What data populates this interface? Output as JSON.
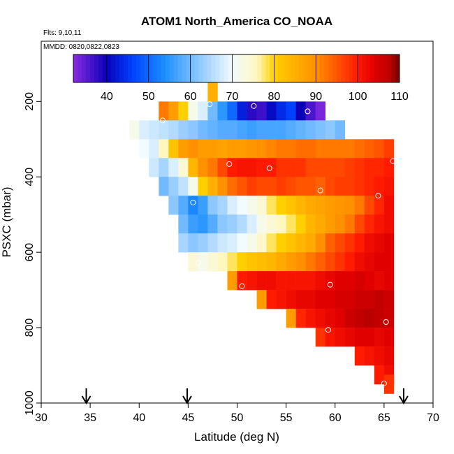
{
  "chart_data": {
    "type": "heatmap",
    "title": "ATOM1 North_America CO_NOAA",
    "flights_text": "Flts: 9,10,11",
    "dates_text": "MMDD: 0820,0822,0823",
    "xlabel": "Latitude (deg N)",
    "ylabel": "PSXC (mbar)",
    "xlim": [
      30,
      70
    ],
    "ylim": [
      1000,
      40
    ],
    "x_ticks": [
      30,
      35,
      40,
      45,
      50,
      55,
      60,
      65,
      70
    ],
    "y_ticks": [
      200,
      400,
      600,
      800,
      1000
    ],
    "colorbar": {
      "min": 32,
      "max": 110,
      "ticks": [
        40,
        50,
        60,
        70,
        80,
        90,
        100,
        110
      ],
      "stops": [
        [
          32,
          "#8a2be2"
        ],
        [
          40,
          "#0a00b8"
        ],
        [
          46,
          "#0040ff"
        ],
        [
          54,
          "#1e90ff"
        ],
        [
          62,
          "#8cc8ff"
        ],
        [
          70,
          "#f2fbff"
        ],
        [
          76,
          "#fff7c0"
        ],
        [
          80,
          "#ffd000"
        ],
        [
          90,
          "#ff9000"
        ],
        [
          100,
          "#ff1a00"
        ],
        [
          104,
          "#e00000"
        ],
        [
          108,
          "#b80000"
        ],
        [
          110,
          "#6a0000"
        ]
      ]
    },
    "bin_width_lat": 1,
    "bin_height_mbar": 50,
    "cells": [
      {
        "p": 175,
        "row": [
          [
            47.5,
            85
          ]
        ]
      },
      {
        "p": 225,
        "row": [
          [
            42.5,
            92
          ],
          [
            43.5,
            88
          ],
          [
            44.5,
            80
          ],
          [
            45.5,
            72
          ],
          [
            46.5,
            68
          ],
          [
            47.5,
            60
          ],
          [
            48.5,
            55
          ],
          [
            49.5,
            50
          ],
          [
            50.5,
            43
          ],
          [
            51.5,
            38
          ],
          [
            52.5,
            37
          ],
          [
            53.5,
            41
          ],
          [
            54.5,
            44
          ],
          [
            55.5,
            46
          ],
          [
            56.5,
            40
          ],
          [
            57.5,
            36
          ],
          [
            58.5,
            33
          ]
        ]
      },
      {
        "p": 275,
        "row": [
          [
            39.5,
            72
          ],
          [
            40.5,
            68
          ],
          [
            41.5,
            67
          ],
          [
            42.5,
            66
          ],
          [
            43.5,
            65
          ],
          [
            44.5,
            63
          ],
          [
            45.5,
            62
          ],
          [
            46.5,
            60
          ],
          [
            47.5,
            59
          ],
          [
            48.5,
            58
          ],
          [
            49.5,
            58
          ],
          [
            50.5,
            57
          ],
          [
            51.5,
            56
          ],
          [
            52.5,
            57
          ],
          [
            53.5,
            57
          ],
          [
            54.5,
            57
          ],
          [
            55.5,
            58
          ],
          [
            56.5,
            59
          ],
          [
            57.5,
            60
          ],
          [
            58.5,
            61
          ],
          [
            59.5,
            62
          ],
          [
            60.5,
            60
          ]
        ]
      },
      {
        "p": 325,
        "row": [
          [
            40.5,
            70
          ],
          [
            41.5,
            68
          ],
          [
            42.5,
            76
          ],
          [
            43.5,
            82
          ],
          [
            44.5,
            88
          ],
          [
            45.5,
            90
          ],
          [
            46.5,
            88
          ],
          [
            47.5,
            88
          ],
          [
            48.5,
            87
          ],
          [
            49.5,
            88
          ],
          [
            50.5,
            88
          ],
          [
            51.5,
            89
          ],
          [
            52.5,
            90
          ],
          [
            53.5,
            91
          ],
          [
            54.5,
            92
          ],
          [
            55.5,
            92
          ],
          [
            56.5,
            93
          ],
          [
            57.5,
            93
          ],
          [
            58.5,
            92
          ],
          [
            59.5,
            92
          ],
          [
            60.5,
            92
          ],
          [
            61.5,
            92
          ],
          [
            62.5,
            93
          ],
          [
            63.5,
            94
          ],
          [
            64.5,
            95
          ],
          [
            65.5,
            97
          ]
        ]
      },
      {
        "p": 375,
        "row": [
          [
            41.5,
            67
          ],
          [
            42.5,
            64
          ],
          [
            43.5,
            68
          ],
          [
            44.5,
            74
          ],
          [
            45.5,
            84
          ],
          [
            46.5,
            90
          ],
          [
            47.5,
            92
          ],
          [
            48.5,
            96
          ],
          [
            49.5,
            100
          ],
          [
            50.5,
            101
          ],
          [
            51.5,
            101
          ],
          [
            52.5,
            100
          ],
          [
            53.5,
            100
          ],
          [
            54.5,
            98
          ],
          [
            55.5,
            98
          ],
          [
            56.5,
            98
          ],
          [
            57.5,
            96
          ],
          [
            58.5,
            96
          ],
          [
            59.5,
            96
          ],
          [
            60.5,
            96
          ],
          [
            61.5,
            97
          ],
          [
            62.5,
            98
          ],
          [
            63.5,
            99
          ],
          [
            64.5,
            99
          ],
          [
            65.5,
            100
          ]
        ]
      },
      {
        "p": 425,
        "row": [
          [
            42.5,
            60
          ],
          [
            43.5,
            63
          ],
          [
            44.5,
            66
          ],
          [
            45.5,
            72
          ],
          [
            46.5,
            80
          ],
          [
            47.5,
            85
          ],
          [
            48.5,
            90
          ],
          [
            49.5,
            93
          ],
          [
            50.5,
            95
          ],
          [
            51.5,
            97
          ],
          [
            52.5,
            96
          ],
          [
            53.5,
            96
          ],
          [
            54.5,
            97
          ],
          [
            55.5,
            96
          ],
          [
            56.5,
            95
          ],
          [
            57.5,
            95
          ],
          [
            58.5,
            94
          ],
          [
            59.5,
            96
          ],
          [
            60.5,
            97
          ],
          [
            61.5,
            97
          ],
          [
            62.5,
            98
          ],
          [
            63.5,
            99
          ],
          [
            64.5,
            100
          ],
          [
            65.5,
            101
          ]
        ]
      },
      {
        "p": 475,
        "row": [
          [
            43.5,
            62
          ],
          [
            44.5,
            58
          ],
          [
            45.5,
            53
          ],
          [
            46.5,
            56
          ],
          [
            47.5,
            62
          ],
          [
            48.5,
            64
          ],
          [
            49.5,
            68
          ],
          [
            50.5,
            70
          ],
          [
            51.5,
            72
          ],
          [
            52.5,
            74
          ],
          [
            53.5,
            78
          ],
          [
            54.5,
            80
          ],
          [
            55.5,
            82
          ],
          [
            56.5,
            84
          ],
          [
            57.5,
            86
          ],
          [
            58.5,
            87
          ],
          [
            59.5,
            88
          ],
          [
            60.5,
            89
          ],
          [
            61.5,
            90
          ],
          [
            62.5,
            92
          ],
          [
            63.5,
            96
          ],
          [
            64.5,
            99
          ],
          [
            65.5,
            102
          ]
        ]
      },
      {
        "p": 525,
        "row": [
          [
            44.5,
            60
          ],
          [
            45.5,
            56
          ],
          [
            46.5,
            55
          ],
          [
            47.5,
            58
          ],
          [
            48.5,
            62
          ],
          [
            49.5,
            63
          ],
          [
            50.5,
            65
          ],
          [
            51.5,
            68
          ],
          [
            52.5,
            72
          ],
          [
            53.5,
            74
          ],
          [
            54.5,
            76
          ],
          [
            55.5,
            78
          ],
          [
            56.5,
            80
          ],
          [
            57.5,
            84
          ],
          [
            58.5,
            86
          ],
          [
            59.5,
            88
          ],
          [
            60.5,
            90
          ],
          [
            61.5,
            92
          ],
          [
            62.5,
            96
          ],
          [
            63.5,
            99
          ],
          [
            64.5,
            101
          ],
          [
            65.5,
            102
          ]
        ]
      },
      {
        "p": 575,
        "row": [
          [
            44.5,
            64
          ],
          [
            45.5,
            62
          ],
          [
            46.5,
            63
          ],
          [
            47.5,
            65
          ],
          [
            48.5,
            67
          ],
          [
            49.5,
            68
          ],
          [
            50.5,
            70
          ],
          [
            51.5,
            72
          ],
          [
            52.5,
            75
          ],
          [
            53.5,
            78
          ],
          [
            54.5,
            80
          ],
          [
            55.5,
            82
          ],
          [
            56.5,
            84
          ],
          [
            57.5,
            86
          ],
          [
            58.5,
            90
          ],
          [
            59.5,
            94
          ],
          [
            60.5,
            96
          ],
          [
            61.5,
            98
          ],
          [
            62.5,
            100
          ],
          [
            63.5,
            102
          ],
          [
            64.5,
            103
          ],
          [
            65.5,
            104
          ]
        ]
      },
      {
        "p": 625,
        "row": [
          [
            45.5,
            74
          ],
          [
            46.5,
            72
          ],
          [
            47.5,
            74
          ],
          [
            48.5,
            76
          ],
          [
            49.5,
            78
          ],
          [
            50.5,
            80
          ],
          [
            51.5,
            82
          ],
          [
            52.5,
            83
          ],
          [
            53.5,
            84
          ],
          [
            54.5,
            86
          ],
          [
            55.5,
            88
          ],
          [
            56.5,
            90
          ],
          [
            57.5,
            92
          ],
          [
            58.5,
            94
          ],
          [
            59.5,
            96
          ],
          [
            60.5,
            98
          ],
          [
            61.5,
            100
          ],
          [
            62.5,
            102
          ],
          [
            63.5,
            103
          ],
          [
            64.5,
            104
          ],
          [
            65.5,
            104
          ]
        ]
      },
      {
        "p": 675,
        "row": [
          [
            49.5,
            88
          ],
          [
            50.5,
            100
          ],
          [
            51.5,
            101
          ],
          [
            52.5,
            102
          ],
          [
            53.5,
            102
          ],
          [
            54.5,
            101
          ],
          [
            55.5,
            101
          ],
          [
            56.5,
            101
          ],
          [
            57.5,
            101
          ],
          [
            58.5,
            102
          ],
          [
            59.5,
            103
          ],
          [
            60.5,
            104
          ],
          [
            61.5,
            104
          ],
          [
            62.5,
            105
          ],
          [
            63.5,
            104
          ],
          [
            64.5,
            103
          ],
          [
            65.5,
            104
          ]
        ]
      },
      {
        "p": 725,
        "row": [
          [
            52.5,
            88
          ],
          [
            53.5,
            100
          ],
          [
            54.5,
            101
          ],
          [
            55.5,
            102
          ],
          [
            56.5,
            103
          ],
          [
            57.5,
            103
          ],
          [
            58.5,
            104
          ],
          [
            59.5,
            104
          ],
          [
            60.5,
            105
          ],
          [
            61.5,
            105
          ],
          [
            62.5,
            106
          ],
          [
            63.5,
            106
          ],
          [
            64.5,
            107
          ],
          [
            65.5,
            106
          ]
        ]
      },
      {
        "p": 775,
        "row": [
          [
            55.5,
            88
          ],
          [
            56.5,
            99
          ],
          [
            57.5,
            101
          ],
          [
            58.5,
            102
          ],
          [
            59.5,
            103
          ],
          [
            60.5,
            104
          ],
          [
            61.5,
            106
          ],
          [
            62.5,
            107
          ],
          [
            63.5,
            108
          ],
          [
            64.5,
            107
          ],
          [
            65.5,
            106
          ]
        ]
      },
      {
        "p": 825,
        "row": [
          [
            58.5,
            98
          ],
          [
            59.5,
            101
          ],
          [
            60.5,
            102
          ],
          [
            61.5,
            103
          ],
          [
            62.5,
            104
          ],
          [
            63.5,
            104
          ],
          [
            64.5,
            103
          ],
          [
            65.5,
            104
          ]
        ]
      },
      {
        "p": 875,
        "row": [
          [
            62.5,
            100
          ],
          [
            63.5,
            101
          ],
          [
            64.5,
            102
          ],
          [
            65.5,
            103
          ]
        ]
      },
      {
        "p": 925,
        "row": [
          [
            64.5,
            100
          ],
          [
            65.5,
            102
          ]
        ]
      },
      {
        "p": 950,
        "row": [
          [
            65.5,
            98
          ]
        ]
      }
    ],
    "profile_points": [
      {
        "lat": 47.2,
        "p": 207
      },
      {
        "lat": 51.7,
        "p": 212
      },
      {
        "lat": 57.2,
        "p": 226
      },
      {
        "lat": 42.4,
        "p": 250
      },
      {
        "lat": 49.2,
        "p": 366
      },
      {
        "lat": 53.3,
        "p": 377
      },
      {
        "lat": 65.9,
        "p": 358
      },
      {
        "lat": 58.5,
        "p": 436
      },
      {
        "lat": 64.4,
        "p": 450
      },
      {
        "lat": 45.5,
        "p": 468
      },
      {
        "lat": 46.0,
        "p": 628
      },
      {
        "lat": 50.5,
        "p": 690
      },
      {
        "lat": 59.5,
        "p": 686
      },
      {
        "lat": 65.2,
        "p": 785
      },
      {
        "lat": 59.3,
        "p": 806
      },
      {
        "lat": 65.0,
        "p": 948
      }
    ],
    "arrow_latitudes": [
      34.6,
      44.9,
      67.0
    ]
  }
}
